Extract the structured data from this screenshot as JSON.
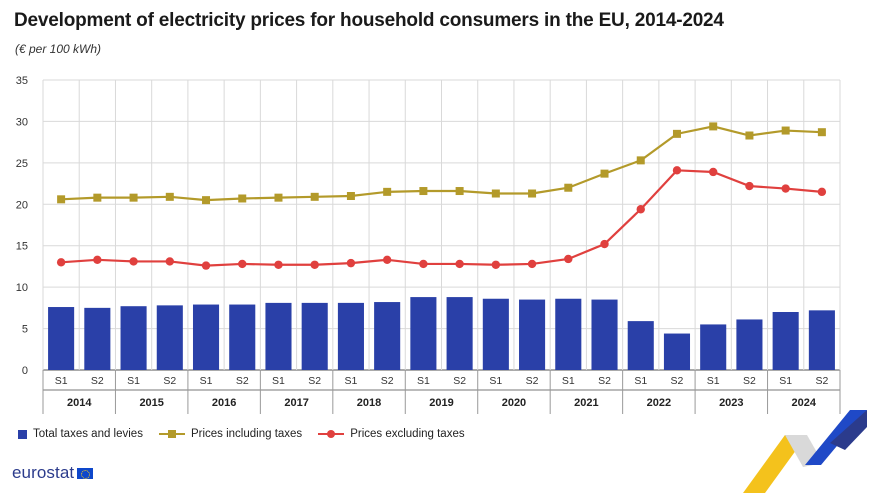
{
  "title": "Development of electricity prices for household consumers in the EU, 2014-2024",
  "subtitle": "(€ per 100 kWh)",
  "legend": {
    "bars": "Total taxes and levies",
    "incl": "Prices including taxes",
    "excl": "Prices excluding taxes"
  },
  "logo": {
    "text": "eurostat"
  },
  "colors": {
    "bar": "#2a40a8",
    "incl": "#b39a2a",
    "excl": "#e0403e",
    "grid": "#d9d9d9",
    "axis": "#555555"
  },
  "chart_data": {
    "type": "bar",
    "title": "Development of electricity prices for household consumers in the EU, 2014-2024",
    "subtitle": "(€ per 100 kWh)",
    "ylim": [
      0,
      35
    ],
    "yticks": [
      0,
      5,
      10,
      15,
      20,
      25,
      30,
      35
    ],
    "grid": true,
    "legend_position": "bottom-left",
    "years": [
      "2014",
      "2015",
      "2016",
      "2017",
      "2018",
      "2019",
      "2020",
      "2021",
      "2022",
      "2023",
      "2024"
    ],
    "semesters": [
      "S1",
      "S2"
    ],
    "categories": [
      "S1",
      "S2",
      "S1",
      "S2",
      "S1",
      "S2",
      "S1",
      "S2",
      "S1",
      "S2",
      "S1",
      "S2",
      "S1",
      "S2",
      "S1",
      "S2",
      "S1",
      "S2",
      "S1",
      "S2",
      "S1",
      "S2"
    ],
    "series": [
      {
        "name": "Total taxes and levies",
        "type": "bar",
        "values": [
          7.6,
          7.5,
          7.7,
          7.8,
          7.9,
          7.9,
          8.1,
          8.1,
          8.1,
          8.2,
          8.8,
          8.8,
          8.6,
          8.5,
          8.6,
          8.5,
          5.9,
          4.4,
          5.5,
          6.1,
          7.0,
          7.2
        ]
      },
      {
        "name": "Prices including taxes",
        "type": "line",
        "values": [
          20.6,
          20.8,
          20.8,
          20.9,
          20.5,
          20.7,
          20.8,
          20.9,
          21.0,
          21.5,
          21.6,
          21.6,
          21.3,
          21.3,
          22.0,
          23.7,
          25.3,
          28.5,
          29.4,
          28.3,
          28.9,
          28.7
        ]
      },
      {
        "name": "Prices excluding taxes",
        "type": "line",
        "values": [
          13.0,
          13.3,
          13.1,
          13.1,
          12.6,
          12.8,
          12.7,
          12.7,
          12.9,
          13.3,
          12.8,
          12.8,
          12.7,
          12.8,
          13.4,
          15.2,
          19.4,
          24.1,
          23.9,
          22.2,
          21.9,
          21.5
        ]
      }
    ]
  }
}
